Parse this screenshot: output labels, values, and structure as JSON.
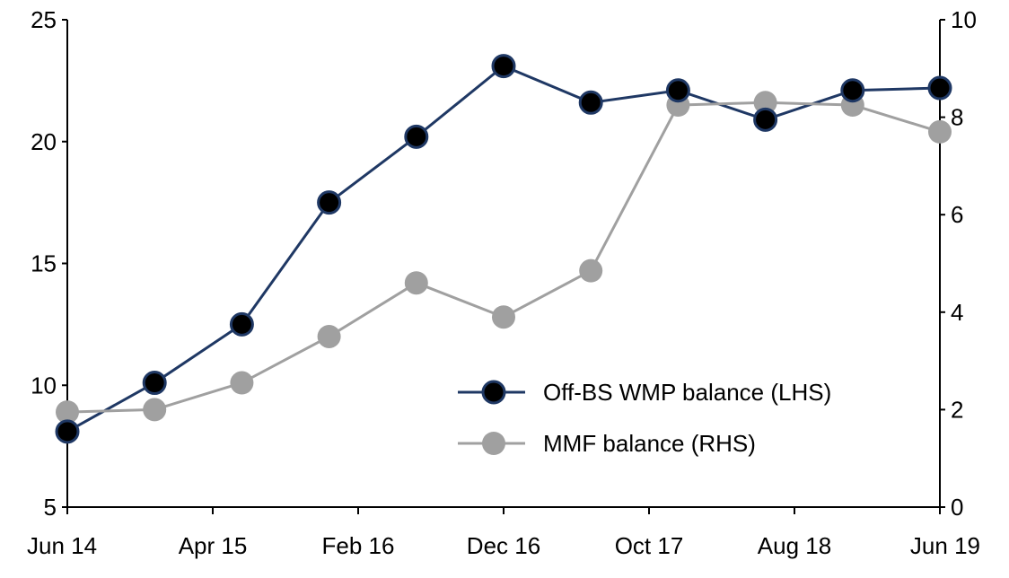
{
  "chart_data": {
    "type": "line",
    "title": "",
    "x": [
      "Jun 14",
      "Dec 14",
      "Jun 15",
      "Dec 15",
      "Jun 16",
      "Dec 16",
      "Jun 17",
      "Dec 17",
      "Jun 18",
      "Dec 18",
      "Jun 19"
    ],
    "x_tick_labels": [
      "Jun 14",
      "Apr 15",
      "Feb 16",
      "Dec 16",
      "Oct 17",
      "Aug 18",
      "Jun 19"
    ],
    "y_left": {
      "label": "",
      "lim": [
        5,
        25
      ],
      "ticks": [
        "5",
        "10",
        "15",
        "20",
        "25"
      ]
    },
    "y_right": {
      "label": "",
      "lim": [
        0,
        10
      ],
      "ticks": [
        "0",
        "2",
        "4",
        "6",
        "8",
        "10"
      ]
    },
    "grid": false,
    "legend_placement": "center-right",
    "series": [
      {
        "name": "Off-BS WMP balance (LHS)",
        "axis": "left",
        "color": "#1f3864",
        "values": [
          8.1,
          10.1,
          12.5,
          17.5,
          20.2,
          23.1,
          21.6,
          22.1,
          20.9,
          22.1,
          22.2
        ]
      },
      {
        "name": "MMF balance (RHS)",
        "axis": "right",
        "color": "#a0a0a0",
        "values": [
          1.95,
          2.0,
          2.55,
          3.5,
          4.6,
          3.9,
          4.85,
          8.25,
          8.3,
          8.25,
          7.7
        ]
      }
    ]
  }
}
